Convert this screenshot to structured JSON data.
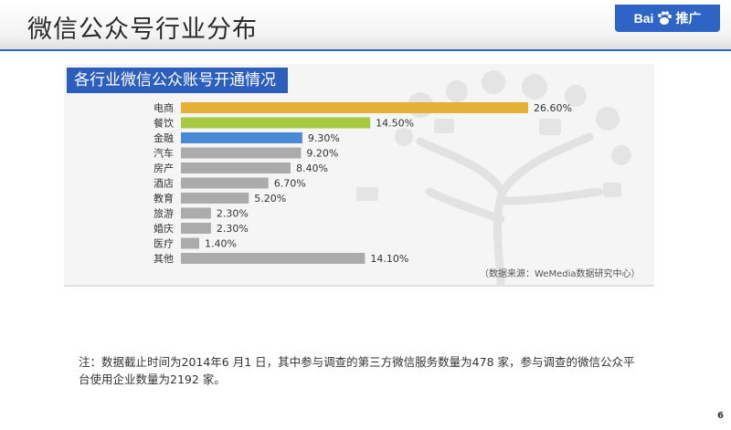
{
  "slide": {
    "title": "微信公众号行业分布",
    "page_number": "6",
    "logo_text": "Bai",
    "logo_suffix": "推广"
  },
  "chart_header": "各行业微信公众账号开通情况",
  "source": "（数据来源：WeMedia数据研究中心）",
  "note": "注：数据截止时间为2014年6 月1 日，其中参与调查的第三方微信服务数量为478 家，参与调查的微信公众平台使用企业数量为2192 家。",
  "chart_data": {
    "type": "bar",
    "orientation": "horizontal",
    "title": "各行业微信公众账号开通情况",
    "categories": [
      "电商",
      "餐饮",
      "金融",
      "汽车",
      "房产",
      "酒店",
      "教育",
      "旅游",
      "婚庆",
      "医疗",
      "其他"
    ],
    "values": [
      26.6,
      14.5,
      9.3,
      9.2,
      8.4,
      6.7,
      5.2,
      2.3,
      2.3,
      1.4,
      14.1
    ],
    "value_labels": [
      "26.60%",
      "14.50%",
      "9.30%",
      "9.20%",
      "8.40%",
      "6.70%",
      "5.20%",
      "2.30%",
      "2.30%",
      "1.40%",
      "14.10%"
    ],
    "colors": [
      "#e5b036",
      "#a6c93f",
      "#4a8ad4",
      "#ababab",
      "#ababab",
      "#ababab",
      "#ababab",
      "#ababab",
      "#ababab",
      "#ababab",
      "#ababab"
    ],
    "xlim": [
      0,
      30
    ],
    "xlabel": "",
    "ylabel": "",
    "grid": false,
    "legend": "none"
  }
}
